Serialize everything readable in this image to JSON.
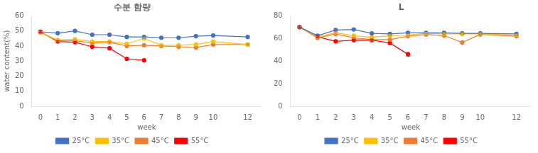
{
  "chart_data": [
    {
      "type": "line",
      "title": "수분 함량",
      "xlabel": "week",
      "ylabel": "water content(%)",
      "x": [
        0,
        1,
        2,
        3,
        4,
        5,
        6,
        7,
        8,
        9,
        10,
        12
      ],
      "series": [
        {
          "name": "25°C",
          "color": "#4472C4",
          "marker": "circle",
          "values": [
            49.5,
            48.5,
            50.0,
            47.5,
            47.5,
            46.0,
            46.0,
            45.5,
            45.5,
            46.5,
            47.0,
            46.0
          ],
          "errors": [
            0.8,
            0.5,
            0.5,
            0.5,
            0.5,
            0.5,
            0.5,
            0.5,
            0.5,
            0.5,
            0.5,
            0.5
          ]
        },
        {
          "name": "35°C",
          "color": "#FFC000",
          "marker": "circle",
          "values": [
            49.0,
            44.0,
            44.5,
            43.0,
            43.0,
            41.5,
            45.0,
            40.5,
            40.5,
            41.0,
            43.0,
            41.0
          ],
          "errors": [
            0.8,
            0.5,
            0.5,
            0.5,
            0.5,
            0.5,
            0.5,
            0.5,
            0.5,
            0.5,
            0.5,
            0.5
          ]
        },
        {
          "name": "45°C",
          "color": "#ED7D31",
          "marker": "circle",
          "values": [
            49.0,
            43.5,
            43.5,
            42.0,
            42.5,
            40.0,
            40.5,
            40.0,
            39.5,
            39.0,
            41.0,
            41.0
          ],
          "errors": [
            0.8,
            0.5,
            0.5,
            0.5,
            0.5,
            0.5,
            0.5,
            0.5,
            0.5,
            0.5,
            0.5,
            0.5
          ]
        },
        {
          "name": "55°C",
          "color": "#FF0000",
          "marker": "circle",
          "values": [
            49.5,
            43.0,
            42.5,
            39.5,
            38.5,
            31.5,
            30.5,
            null,
            null,
            null,
            null,
            null
          ],
          "errors": [
            0.8,
            0.5,
            0.5,
            0.5,
            0.5,
            0.5,
            0.5,
            null,
            null,
            null,
            null,
            null
          ]
        }
      ],
      "xlim": [
        -0.5,
        12.8
      ],
      "xticks": [
        0,
        1,
        2,
        3,
        4,
        5,
        6,
        7,
        8,
        9,
        10,
        12
      ],
      "ylim": [
        0,
        60
      ],
      "yticks": [
        0,
        10,
        20,
        30,
        40,
        50,
        60
      ],
      "grid": false,
      "legend": "bottom"
    },
    {
      "type": "line",
      "title": "L",
      "xlabel": "week",
      "x": [
        0,
        1,
        2,
        3,
        4,
        5,
        6,
        7,
        8,
        9,
        10,
        12
      ],
      "series": [
        {
          "name": "25°C",
          "color": "#4472C4",
          "marker": "circle",
          "values": [
            70.0,
            62.5,
            67.5,
            68.0,
            64.5,
            64.0,
            65.0,
            65.0,
            65.0,
            64.5,
            64.5,
            64.0
          ],
          "errors": [
            1.0,
            1.0,
            0.8,
            0.8,
            0.8,
            0.8,
            0.8,
            0.8,
            0.8,
            0.8,
            0.8,
            0.8
          ]
        },
        {
          "name": "35°C",
          "color": "#FFC000",
          "marker": "circle",
          "values": [
            70.0,
            61.5,
            65.0,
            62.5,
            61.0,
            62.5,
            63.0,
            64.5,
            64.0,
            64.0,
            64.0,
            63.0
          ],
          "errors": [
            1.0,
            1.0,
            0.8,
            0.8,
            0.8,
            0.8,
            0.8,
            0.8,
            0.8,
            0.8,
            0.8,
            0.8
          ]
        },
        {
          "name": "45°C",
          "color": "#ED7D31",
          "marker": "circle",
          "values": [
            70.0,
            60.5,
            64.0,
            60.5,
            59.0,
            59.0,
            62.0,
            63.5,
            62.5,
            56.5,
            63.5,
            62.0
          ],
          "errors": [
            1.0,
            1.0,
            0.8,
            0.8,
            0.8,
            0.8,
            0.8,
            0.8,
            0.8,
            0.8,
            0.8,
            0.8
          ]
        },
        {
          "name": "55°C",
          "color": "#FF0000",
          "marker": "circle",
          "values": [
            70.0,
            61.5,
            57.5,
            58.5,
            58.5,
            56.0,
            46.0,
            null,
            null,
            null,
            null,
            null
          ],
          "errors": [
            1.0,
            1.0,
            0.8,
            0.8,
            0.8,
            0.8,
            1.5,
            null,
            null,
            null,
            null,
            null
          ]
        }
      ],
      "xlim": [
        -0.5,
        12.8
      ],
      "xticks": [
        0,
        1,
        2,
        3,
        4,
        5,
        6,
        7,
        8,
        9,
        10,
        12
      ],
      "ylim": [
        0,
        80
      ],
      "yticks": [
        0,
        20,
        40,
        60,
        80
      ],
      "grid": false,
      "legend": "bottom"
    }
  ]
}
